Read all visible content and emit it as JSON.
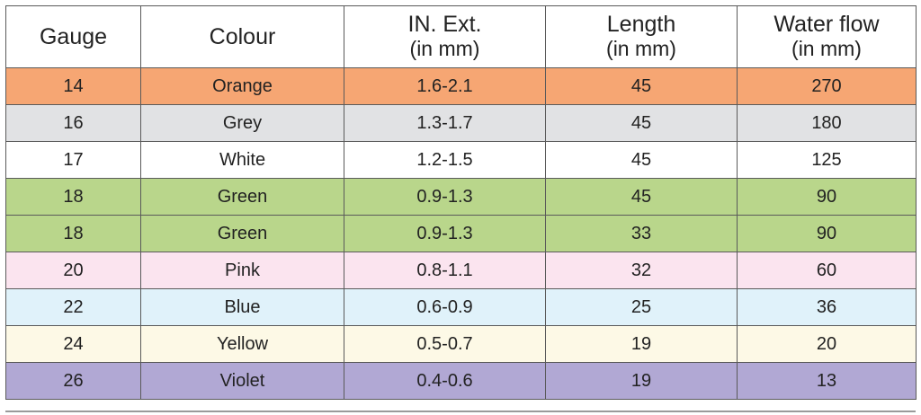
{
  "headers": [
    {
      "label": "Gauge",
      "sub": ""
    },
    {
      "label": "Colour",
      "sub": ""
    },
    {
      "label": "IN. Ext.",
      "sub": "(in mm)"
    },
    {
      "label": "Length",
      "sub": "(in mm)"
    },
    {
      "label": "Water flow",
      "sub": "(in mm)"
    }
  ],
  "rows": [
    {
      "gauge": "14",
      "colour": "Orange",
      "ext": "1.6-2.1",
      "length": "45",
      "flow": "270",
      "bg": "#f6a673"
    },
    {
      "gauge": "16",
      "colour": "Grey",
      "ext": "1.3-1.7",
      "length": "45",
      "flow": "180",
      "bg": "#e1e2e4"
    },
    {
      "gauge": "17",
      "colour": "White",
      "ext": "1.2-1.5",
      "length": "45",
      "flow": "125",
      "bg": "#ffffff"
    },
    {
      "gauge": "18",
      "colour": "Green",
      "ext": "0.9-1.3",
      "length": "45",
      "flow": "90",
      "bg": "#b9d68b"
    },
    {
      "gauge": "18",
      "colour": "Green",
      "ext": "0.9-1.3",
      "length": "33",
      "flow": "90",
      "bg": "#b9d68b"
    },
    {
      "gauge": "20",
      "colour": "Pink",
      "ext": "0.8-1.1",
      "length": "32",
      "flow": "60",
      "bg": "#fbe4ef"
    },
    {
      "gauge": "22",
      "colour": "Blue",
      "ext": "0.6-0.9",
      "length": "25",
      "flow": "36",
      "bg": "#e0f2fa"
    },
    {
      "gauge": "24",
      "colour": "Yellow",
      "ext": "0.5-0.7",
      "length": "19",
      "flow": "20",
      "bg": "#fdf9e6"
    },
    {
      "gauge": "26",
      "colour": "Violet",
      "ext": "0.4-0.6",
      "length": "19",
      "flow": "13",
      "bg": "#b1a8d4"
    }
  ]
}
